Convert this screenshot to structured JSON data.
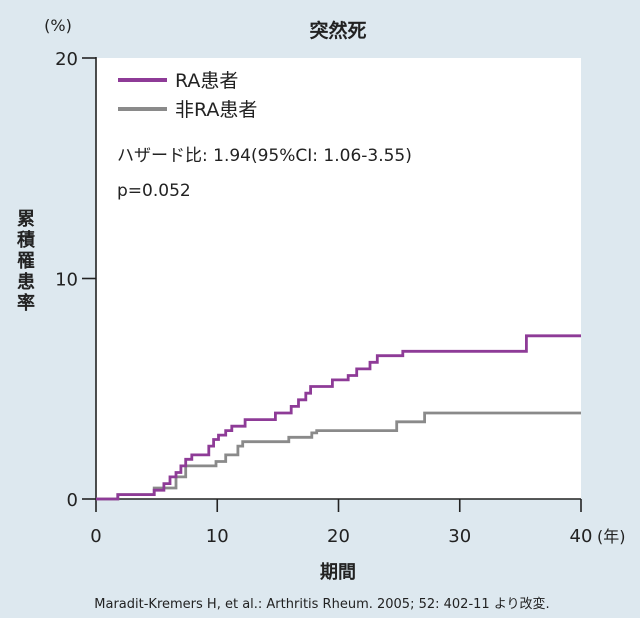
{
  "chart_data": {
    "type": "line",
    "title": "突然死",
    "xlabel": "期間",
    "x_unit": "(年)",
    "ylabel": "累積罹患率",
    "y_unit": "(%)",
    "xlim": [
      0,
      40
    ],
    "ylim": [
      0,
      20
    ],
    "x_ticks": [
      "0",
      "10",
      "20",
      "30",
      "40"
    ],
    "y_ticks": [
      "0",
      "10",
      "20"
    ],
    "x_tick_values": [
      0,
      10,
      20,
      30,
      40
    ],
    "y_tick_values": [
      0,
      10,
      20
    ],
    "grid": false,
    "legend_position": "top-left",
    "annotations": [
      "ハザード比: 1.94(95%CI: 1.06-3.55)",
      "p=0.052"
    ],
    "source": "Maradit-Kremers H, et al.: Arthritis Rheum. 2005; 52: 402-11 より改変.",
    "series": [
      {
        "name": "RA患者",
        "color": "#8e3b97",
        "x": [
          0,
          1.8,
          1.8,
          4.8,
          4.8,
          5.6,
          5.6,
          6.1,
          6.1,
          6.6,
          6.6,
          7.0,
          7.0,
          7.4,
          7.4,
          7.9,
          7.9,
          9.3,
          9.3,
          9.7,
          9.7,
          10.1,
          10.1,
          10.7,
          10.7,
          11.2,
          11.2,
          12.3,
          12.3,
          14.8,
          14.8,
          16.1,
          16.1,
          16.7,
          16.7,
          17.3,
          17.3,
          17.7,
          17.7,
          19.5,
          19.5,
          20.8,
          20.8,
          21.5,
          21.5,
          22.6,
          22.6,
          23.2,
          23.2,
          25.3,
          25.3,
          35.5,
          35.5,
          40
        ],
        "y": [
          0,
          0,
          0.2,
          0.2,
          0.4,
          0.4,
          0.7,
          0.7,
          1.0,
          1.0,
          1.2,
          1.2,
          1.5,
          1.5,
          1.8,
          1.8,
          2.0,
          2.0,
          2.4,
          2.4,
          2.7,
          2.7,
          2.9,
          2.9,
          3.1,
          3.1,
          3.3,
          3.3,
          3.6,
          3.6,
          3.9,
          3.9,
          4.2,
          4.2,
          4.5,
          4.5,
          4.8,
          4.8,
          5.1,
          5.1,
          5.4,
          5.4,
          5.6,
          5.6,
          5.9,
          5.9,
          6.2,
          6.2,
          6.5,
          6.5,
          6.7,
          6.7,
          7.4,
          7.4
        ]
      },
      {
        "name": "非RA患者",
        "color": "#8a8a8a",
        "x": [
          0,
          1.8,
          1.8,
          4.8,
          4.8,
          6.6,
          6.6,
          7.4,
          7.4,
          9.9,
          9.9,
          10.7,
          10.7,
          11.7,
          11.7,
          12.1,
          12.1,
          15.9,
          15.9,
          17.8,
          17.8,
          18.2,
          18.2,
          24.8,
          24.8,
          27.1,
          27.1,
          40
        ],
        "y": [
          0,
          0,
          0.2,
          0.2,
          0.5,
          0.5,
          1.0,
          1.0,
          1.5,
          1.5,
          1.7,
          1.7,
          2.0,
          2.0,
          2.4,
          2.4,
          2.6,
          2.6,
          2.8,
          2.8,
          3.0,
          3.0,
          3.1,
          3.1,
          3.5,
          3.5,
          3.9,
          3.9
        ]
      }
    ]
  }
}
